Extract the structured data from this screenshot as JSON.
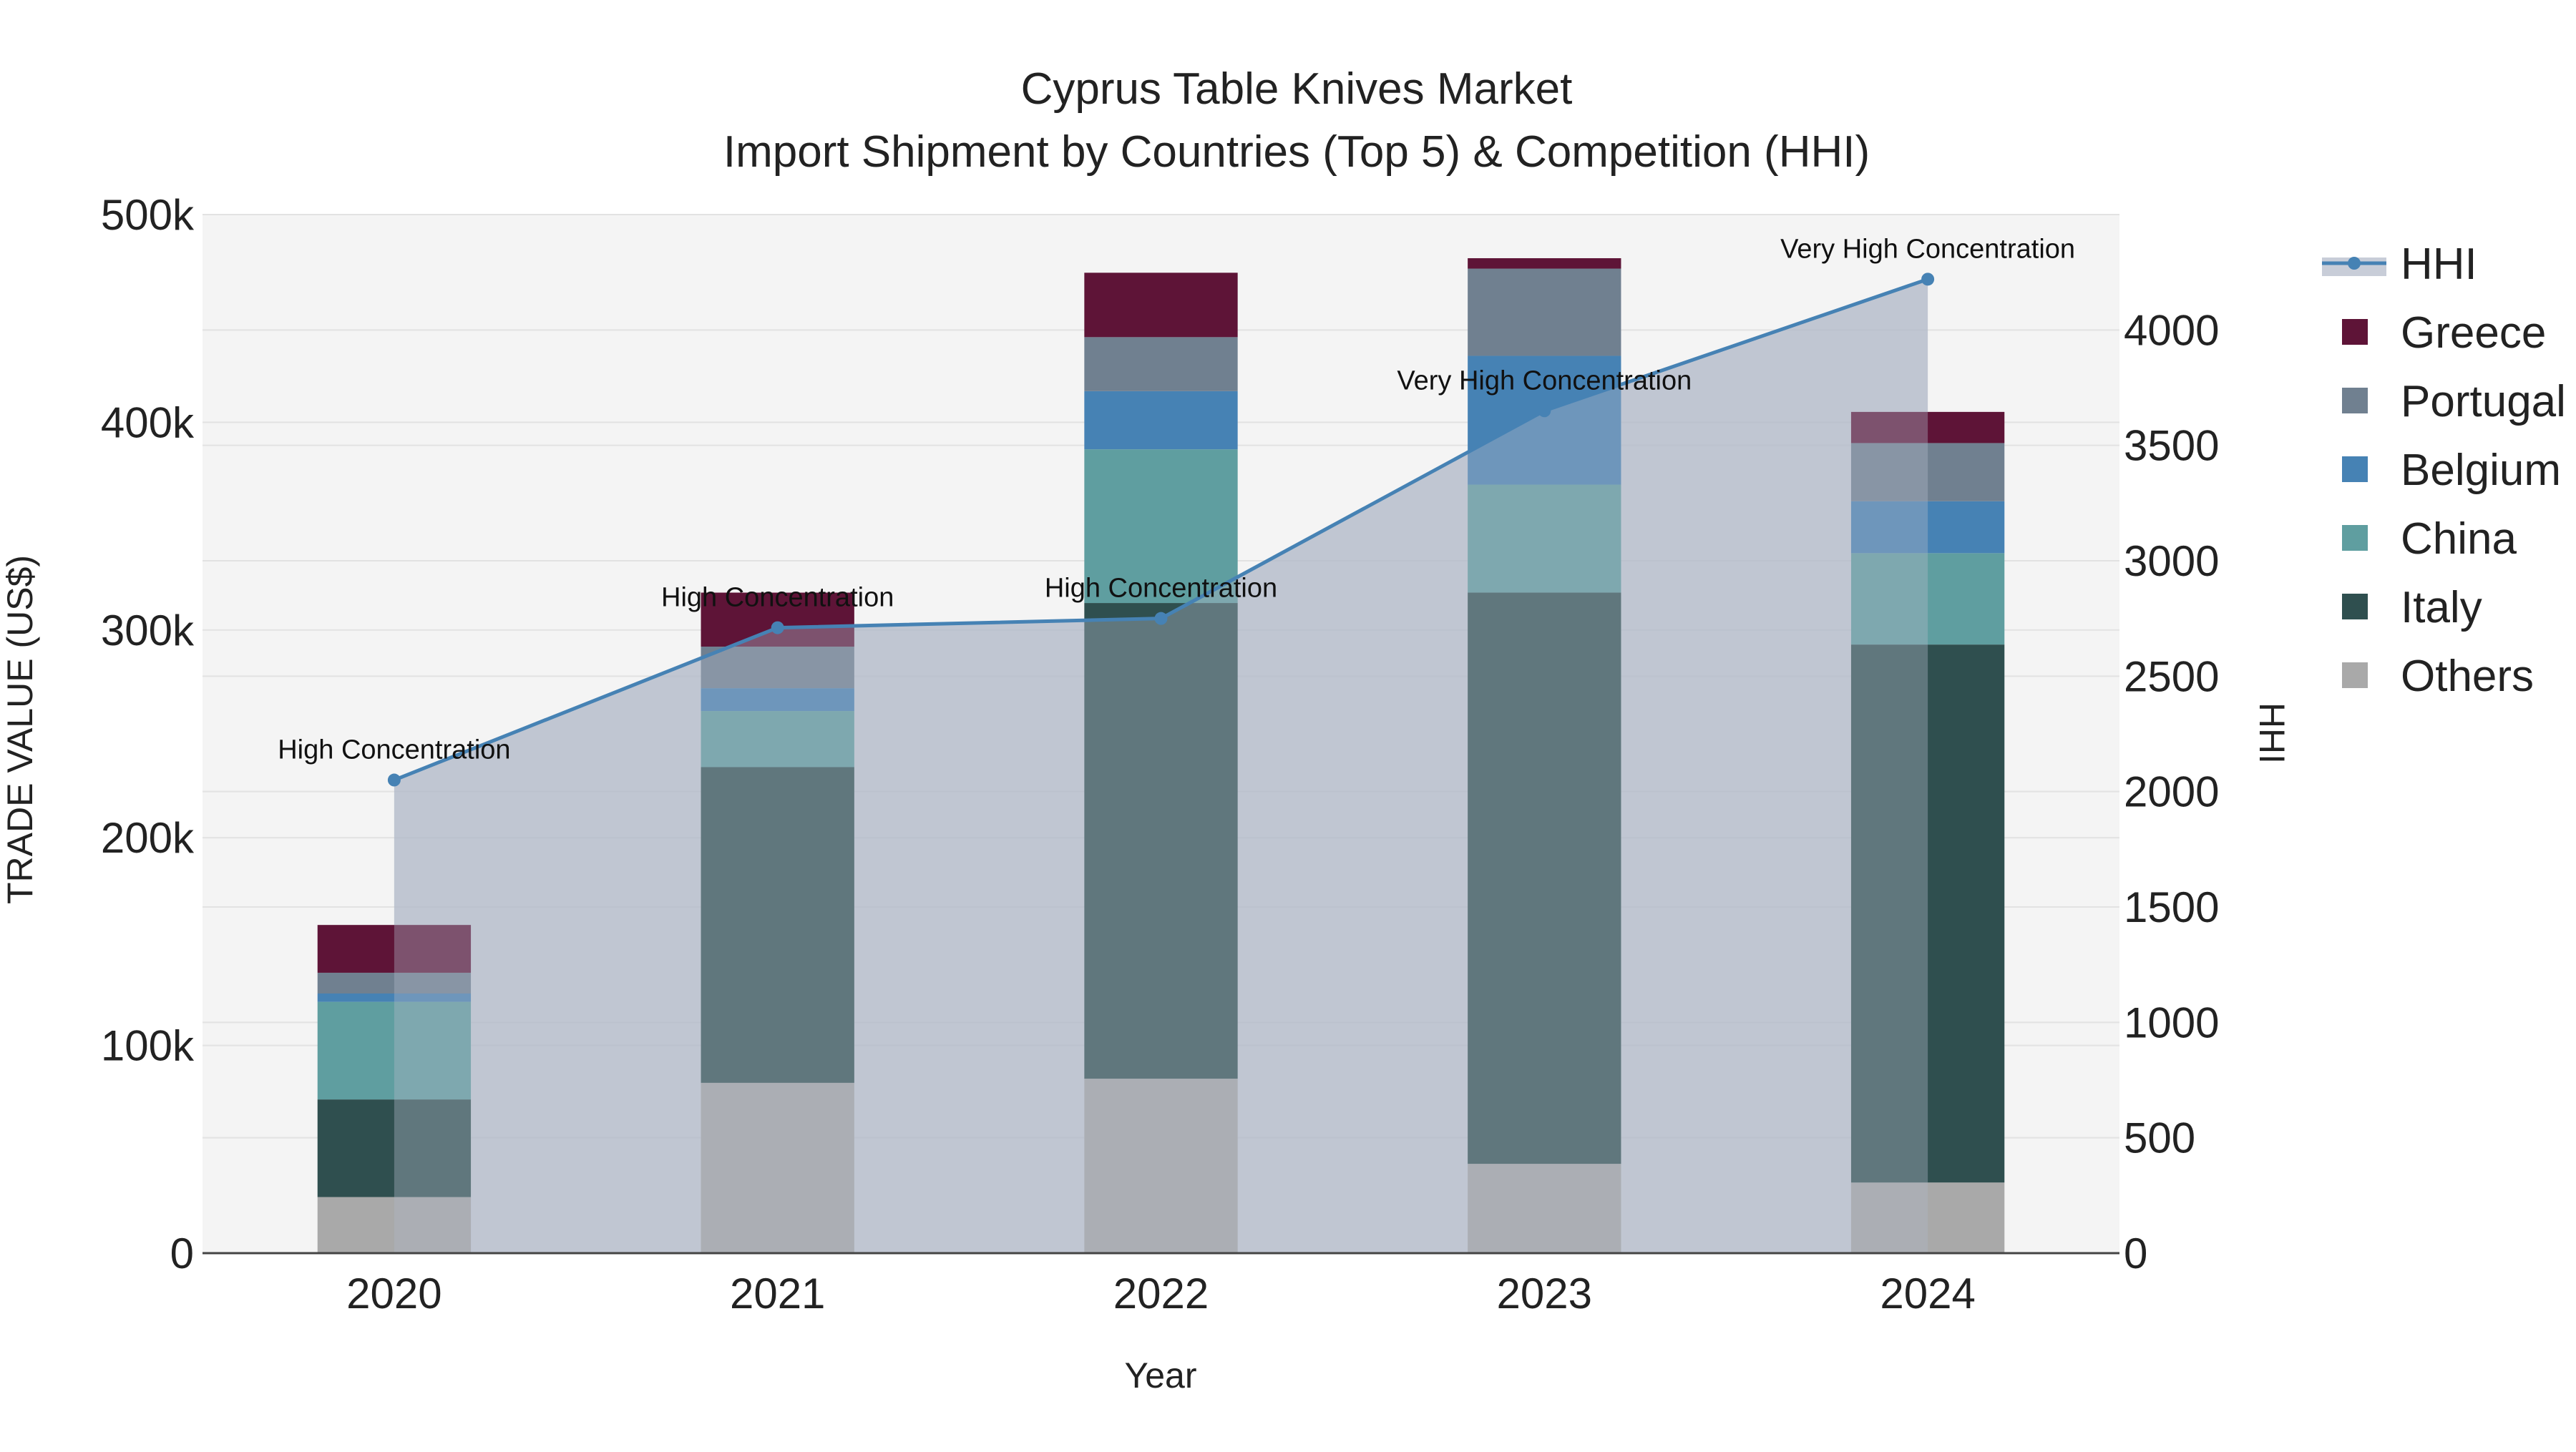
{
  "chart_data": {
    "type": "bar",
    "title": "Cyprus Table Knives Market",
    "subtitle": "Import Shipment by Countries (Top 5) & Competition (HHI)",
    "xlabel": "Year",
    "ylabel": "TRADE VALUE (US$)",
    "y2label": "HHI",
    "categories": [
      "2020",
      "2021",
      "2022",
      "2023",
      "2024"
    ],
    "ylim": [
      0,
      500000
    ],
    "y2lim": [
      0,
      4500
    ],
    "yticks": [
      0,
      100000,
      200000,
      300000,
      400000,
      500000
    ],
    "ytick_labels": [
      "0",
      "100k",
      "200k",
      "300k",
      "400k",
      "500k"
    ],
    "y2ticks": [
      0,
      500,
      1000,
      1500,
      2000,
      2500,
      3000,
      3500,
      4000
    ],
    "y2tick_labels": [
      "0",
      "500",
      "1000",
      "1500",
      "2000",
      "2500",
      "3000",
      "3500",
      "4000"
    ],
    "stacked": true,
    "series": [
      {
        "name": "Others",
        "color": "#A9A9A9",
        "values": [
          27000,
          82000,
          84000,
          43000,
          34000
        ]
      },
      {
        "name": "Italy",
        "color": "#2F4F4F",
        "values": [
          47000,
          152000,
          229000,
          275000,
          259000
        ]
      },
      {
        "name": "China",
        "color": "#5F9EA0",
        "values": [
          47000,
          27000,
          74000,
          52000,
          44000
        ]
      },
      {
        "name": "Belgium",
        "color": "#4682B4",
        "values": [
          4000,
          11000,
          28000,
          62000,
          25000
        ]
      },
      {
        "name": "Portugal",
        "color": "#708090",
        "values": [
          10000,
          20000,
          26000,
          42000,
          28000
        ]
      },
      {
        "name": "Greece",
        "color": "#5E1437",
        "values": [
          23000,
          26000,
          31000,
          5000,
          15000
        ]
      }
    ],
    "hhi": {
      "name": "HHI",
      "color": "#4682B4",
      "values": [
        2050,
        2710,
        2750,
        3650,
        4220
      ],
      "labels": [
        "High Concentration",
        "High Concentration",
        "High Concentration",
        "Very High Concentration",
        "Very High Concentration"
      ]
    },
    "legend": [
      "HHI",
      "Greece",
      "Portugal",
      "Belgium",
      "China",
      "Italy",
      "Others"
    ],
    "legend_position": "right",
    "grid": true
  }
}
